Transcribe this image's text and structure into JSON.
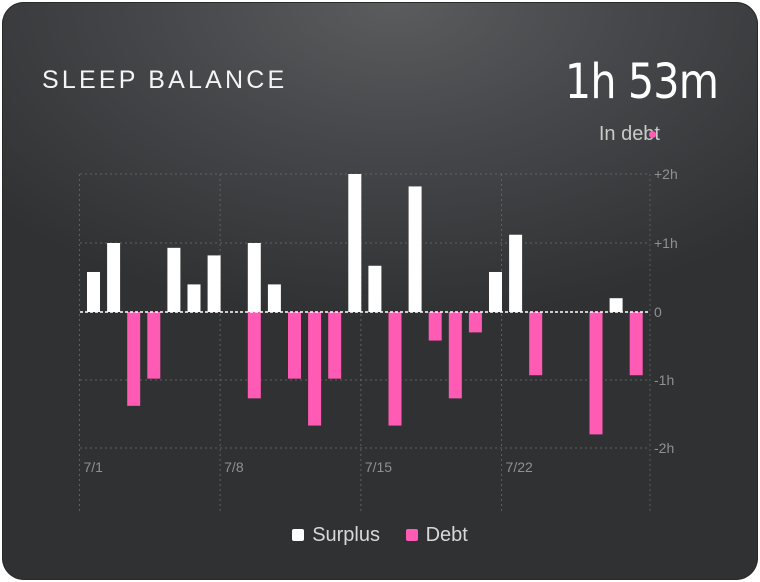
{
  "header": {
    "title": "SLEEP BALANCE",
    "balance_value": "1h 53m",
    "status_label": "In debt"
  },
  "chart_data": {
    "type": "bar",
    "title": "SLEEP BALANCE",
    "y_unit": "hours",
    "ylim": [
      -2,
      2
    ],
    "y_ticks": [
      {
        "value": 2,
        "label": "+2h"
      },
      {
        "value": 1,
        "label": "+1h"
      },
      {
        "value": 0,
        "label": "0"
      },
      {
        "value": -1,
        "label": "-1h"
      },
      {
        "value": -2,
        "label": "-2h"
      }
    ],
    "x_ticks": [
      {
        "day": 1,
        "label": "7/1"
      },
      {
        "day": 8,
        "label": "7/8"
      },
      {
        "day": 15,
        "label": "7/15"
      },
      {
        "day": 22,
        "label": "7/22"
      }
    ],
    "series": [
      {
        "name": "Surplus",
        "color": "#ffffff",
        "points": [
          {
            "day": 1,
            "value": 0.58
          },
          {
            "day": 2,
            "value": 1.0
          },
          {
            "day": 5,
            "value": 0.93
          },
          {
            "day": 6,
            "value": 0.4
          },
          {
            "day": 7,
            "value": 0.82
          },
          {
            "day": 9,
            "value": 1.0
          },
          {
            "day": 10,
            "value": 0.4
          },
          {
            "day": 14,
            "value": 2.0
          },
          {
            "day": 15,
            "value": 0.67
          },
          {
            "day": 17,
            "value": 1.82
          },
          {
            "day": 21,
            "value": 0.58
          },
          {
            "day": 22,
            "value": 1.12
          },
          {
            "day": 27,
            "value": 0.2
          }
        ]
      },
      {
        "name": "Debt",
        "color": "#ff5ab4",
        "points": [
          {
            "day": 3,
            "value": -1.38
          },
          {
            "day": 4,
            "value": -0.98
          },
          {
            "day": 9,
            "value": -1.27
          },
          {
            "day": 11,
            "value": -0.98
          },
          {
            "day": 12,
            "value": -1.67
          },
          {
            "day": 13,
            "value": -0.98
          },
          {
            "day": 16,
            "value": -1.67
          },
          {
            "day": 18,
            "value": -0.42
          },
          {
            "day": 19,
            "value": -1.27
          },
          {
            "day": 20,
            "value": -0.3
          },
          {
            "day": 23,
            "value": -0.93
          },
          {
            "day": 26,
            "value": -1.8
          },
          {
            "day": 28,
            "value": -0.93
          }
        ]
      }
    ],
    "grid": true,
    "legend_position": "bottom"
  }
}
